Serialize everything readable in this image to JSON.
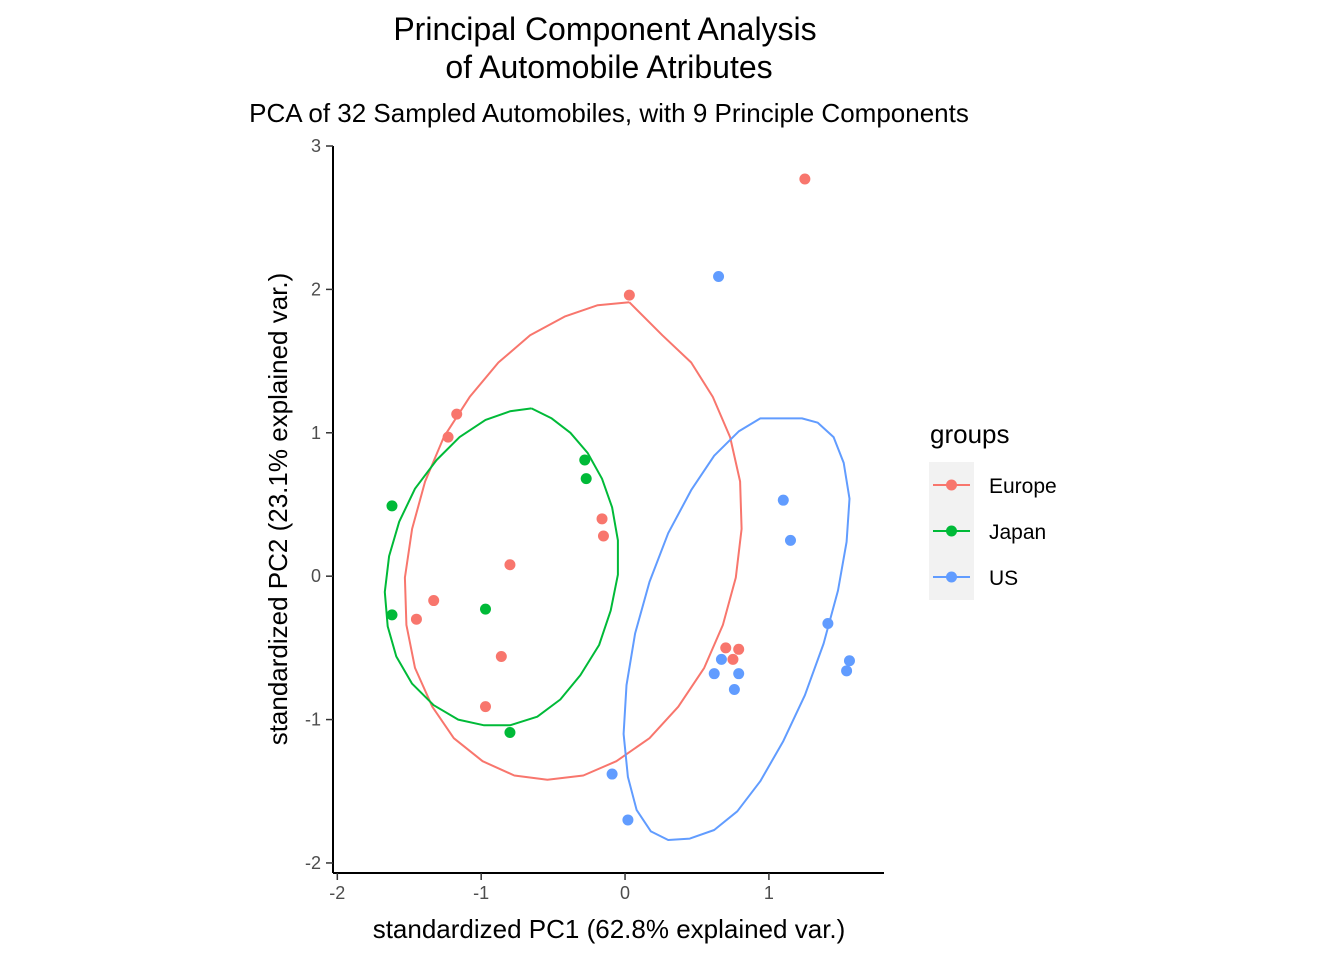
{
  "chart_data": {
    "type": "scatter",
    "title_line1": "Principal Component Analysis",
    "title_line2": "of Automobile Atributes",
    "subtitle": "PCA of 32 Sampled Automobiles, with 9 Principle Components",
    "xlabel": "standardized PC1 (62.8% explained var.)",
    "ylabel": "standardized PC2 (23.1% explained var.)",
    "xlim": [
      -2.03,
      1.8
    ],
    "ylim": [
      -2.07,
      3.0
    ],
    "x_ticks": [
      -2,
      -1,
      0,
      1
    ],
    "x_tick_labels": [
      "-2",
      "-1",
      "0",
      "1"
    ],
    "y_ticks": [
      -2,
      -1,
      0,
      1,
      2,
      3
    ],
    "y_tick_labels": [
      "-2",
      "-1",
      "0",
      "1",
      "2",
      "3"
    ],
    "grid": false,
    "legend": {
      "title": "groups",
      "position": "right"
    },
    "series": [
      {
        "name": "Europe",
        "color": "#F8766D",
        "points": [
          [
            1.25,
            2.77
          ],
          [
            0.03,
            1.96
          ],
          [
            -1.17,
            1.13
          ],
          [
            -1.23,
            0.97
          ],
          [
            -0.16,
            0.4
          ],
          [
            -0.15,
            0.28
          ],
          [
            -0.8,
            0.08
          ],
          [
            -1.33,
            -0.17
          ],
          [
            -1.45,
            -0.3
          ],
          [
            -0.86,
            -0.56
          ],
          [
            -0.97,
            -0.91
          ],
          [
            0.7,
            -0.5
          ],
          [
            0.79,
            -0.51
          ],
          [
            0.75,
            -0.58
          ]
        ],
        "ellipse": [
          [
            0.03,
            1.91
          ],
          [
            -0.19,
            1.89
          ],
          [
            -0.42,
            1.81
          ],
          [
            -0.66,
            1.68
          ],
          [
            -0.88,
            1.49
          ],
          [
            -1.08,
            1.25
          ],
          [
            -1.26,
            0.97
          ],
          [
            -1.39,
            0.66
          ],
          [
            -1.48,
            0.33
          ],
          [
            -1.53,
            -0.01
          ],
          [
            -1.52,
            -0.34
          ],
          [
            -1.46,
            -0.64
          ],
          [
            -1.34,
            -0.91
          ],
          [
            -1.19,
            -1.13
          ],
          [
            -0.99,
            -1.29
          ],
          [
            -0.77,
            -1.39
          ],
          [
            -0.54,
            -1.42
          ],
          [
            -0.29,
            -1.39
          ],
          [
            -0.06,
            -1.29
          ],
          [
            0.17,
            -1.13
          ],
          [
            0.37,
            -0.91
          ],
          [
            0.55,
            -0.64
          ],
          [
            0.68,
            -0.34
          ],
          [
            0.77,
            -0.01
          ],
          [
            0.81,
            0.33
          ],
          [
            0.8,
            0.66
          ],
          [
            0.73,
            0.97
          ],
          [
            0.61,
            1.25
          ],
          [
            0.46,
            1.49
          ],
          [
            0.26,
            1.68
          ],
          [
            0.03,
            1.91
          ]
        ]
      },
      {
        "name": "Japan",
        "color": "#00BA38",
        "points": [
          [
            -1.62,
            0.49
          ],
          [
            -0.28,
            0.81
          ],
          [
            -0.27,
            0.68
          ],
          [
            -1.62,
            -0.27
          ],
          [
            -0.97,
            -0.23
          ],
          [
            -0.8,
            -1.09
          ]
        ],
        "ellipse": [
          [
            -0.65,
            1.17
          ],
          [
            -0.8,
            1.15
          ],
          [
            -0.97,
            1.09
          ],
          [
            -1.15,
            0.97
          ],
          [
            -1.31,
            0.81
          ],
          [
            -1.46,
            0.61
          ],
          [
            -1.57,
            0.38
          ],
          [
            -1.64,
            0.14
          ],
          [
            -1.67,
            -0.11
          ],
          [
            -1.65,
            -0.35
          ],
          [
            -1.59,
            -0.56
          ],
          [
            -1.48,
            -0.75
          ],
          [
            -1.33,
            -0.9
          ],
          [
            -1.16,
            -1.0
          ],
          [
            -0.98,
            -1.04
          ],
          [
            -0.8,
            -1.04
          ],
          [
            -0.61,
            -0.98
          ],
          [
            -0.45,
            -0.86
          ],
          [
            -0.31,
            -0.69
          ],
          [
            -0.18,
            -0.48
          ],
          [
            -0.1,
            -0.24
          ],
          [
            -0.05,
            0.01
          ],
          [
            -0.05,
            0.25
          ],
          [
            -0.09,
            0.48
          ],
          [
            -0.16,
            0.68
          ],
          [
            -0.26,
            0.86
          ],
          [
            -0.38,
            1.0
          ],
          [
            -0.51,
            1.1
          ],
          [
            -0.65,
            1.17
          ]
        ]
      },
      {
        "name": "US",
        "color": "#619CFF",
        "points": [
          [
            0.65,
            2.09
          ],
          [
            1.1,
            0.53
          ],
          [
            1.15,
            0.25
          ],
          [
            1.41,
            -0.33
          ],
          [
            1.56,
            -0.59
          ],
          [
            1.54,
            -0.66
          ],
          [
            0.67,
            -0.58
          ],
          [
            0.62,
            -0.68
          ],
          [
            0.79,
            -0.68
          ],
          [
            0.76,
            -0.79
          ],
          [
            -0.09,
            -1.38
          ],
          [
            0.02,
            -1.7
          ]
        ],
        "ellipse": [
          [
            1.1,
            1.1
          ],
          [
            0.94,
            1.1
          ],
          [
            0.79,
            1.01
          ],
          [
            0.62,
            0.84
          ],
          [
            0.46,
            0.6
          ],
          [
            0.3,
            0.3
          ],
          [
            0.17,
            -0.04
          ],
          [
            0.07,
            -0.4
          ],
          [
            0.01,
            -0.76
          ],
          [
            -0.01,
            -1.1
          ],
          [
            0.02,
            -1.4
          ],
          [
            0.08,
            -1.63
          ],
          [
            0.18,
            -1.78
          ],
          [
            0.3,
            -1.84
          ],
          [
            0.45,
            -1.83
          ],
          [
            0.62,
            -1.77
          ],
          [
            0.78,
            -1.64
          ],
          [
            0.94,
            -1.43
          ],
          [
            1.1,
            -1.15
          ],
          [
            1.25,
            -0.83
          ],
          [
            1.38,
            -0.47
          ],
          [
            1.48,
            -0.1
          ],
          [
            1.54,
            0.24
          ],
          [
            1.56,
            0.54
          ],
          [
            1.52,
            0.79
          ],
          [
            1.45,
            0.97
          ],
          [
            1.34,
            1.07
          ],
          [
            1.23,
            1.1
          ],
          [
            1.1,
            1.1
          ]
        ]
      }
    ]
  }
}
